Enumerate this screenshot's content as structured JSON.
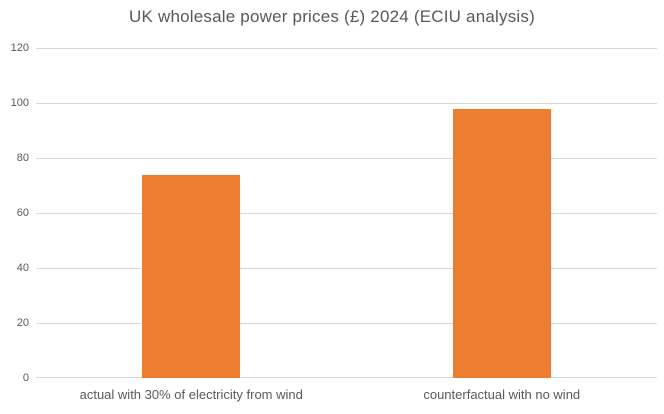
{
  "chart_data": {
    "type": "bar",
    "title": "UK wholesale power prices (£) 2024 (ECIU analysis)",
    "categories": [
      "actual with 30% of electricity from wind",
      "counterfactual with no wind"
    ],
    "values": [
      74,
      98
    ],
    "xlabel": "",
    "ylabel": "",
    "ylim": [
      0,
      120
    ],
    "yticks": [
      0,
      20,
      40,
      60,
      80,
      100,
      120
    ],
    "grid": true,
    "legend_position": "none",
    "colors": {
      "bar": "#ED7D31",
      "gridline": "#D9D9D9",
      "tick_text": "#595959",
      "title_text": "#595959",
      "background": "#FFFFFF"
    }
  }
}
